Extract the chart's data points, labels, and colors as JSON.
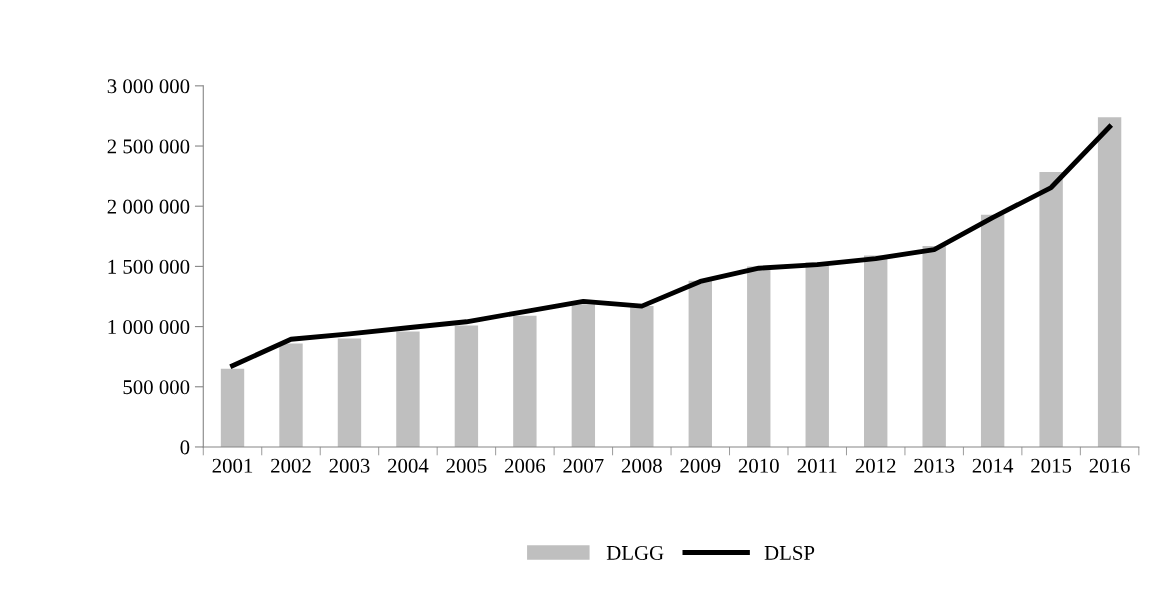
{
  "chart_data": {
    "type": "bar",
    "categories": [
      "2001",
      "2002",
      "2003",
      "2004",
      "2005",
      "2006",
      "2007",
      "2008",
      "2009",
      "2010",
      "2011",
      "2012",
      "2013",
      "2014",
      "2015",
      "2016"
    ],
    "series": [
      {
        "name": "DLGG",
        "color": "#bfbfbf",
        "values": [
          650000,
          860000,
          900000,
          960000,
          1010000,
          1090000,
          1185000,
          1170000,
          1380000,
          1500000,
          1535000,
          1590000,
          1670000,
          1930000,
          2285000,
          2740000
        ]
      },
      {
        "name": "DLSP",
        "type": "line",
        "color": "#000000",
        "values": [
          675000,
          895000,
          940000,
          990000,
          1040000,
          1125000,
          1210000,
          1170000,
          1375000,
          1485000,
          1515000,
          1565000,
          1640000,
          1905000,
          2155000,
          2660000
        ]
      }
    ],
    "ylim": [
      0,
      3000000
    ],
    "yticks": [
      {
        "value": 0,
        "label": "0"
      },
      {
        "value": 500000,
        "label": "500 000"
      },
      {
        "value": 1000000,
        "label": "1 000 000"
      },
      {
        "value": 1500000,
        "label": "1 500 000"
      },
      {
        "value": 2000000,
        "label": "2 000 000"
      },
      {
        "value": 2500000,
        "label": "2 500 000"
      },
      {
        "value": 3000000,
        "label": "3 000 000"
      }
    ],
    "grid": false,
    "legend": "bottom",
    "marker": "none",
    "line_style": "solid"
  }
}
